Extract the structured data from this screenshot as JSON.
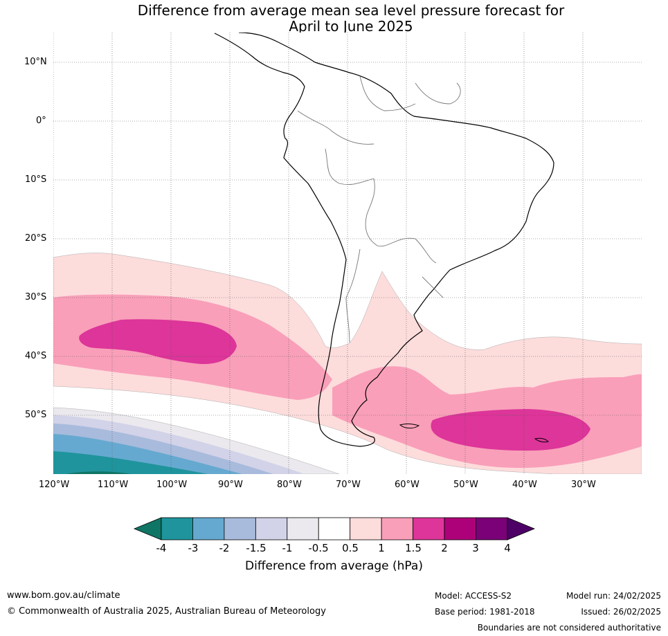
{
  "title_line1": "Difference from average mean sea level pressure forecast for",
  "title_line2": "April to June 2025",
  "lat_labels": [
    "10°N",
    "0°",
    "10°S",
    "20°S",
    "30°S",
    "40°S",
    "50°S"
  ],
  "lon_labels": [
    "120°W",
    "110°W",
    "100°W",
    "90°W",
    "80°W",
    "70°W",
    "60°W",
    "50°W",
    "40°W",
    "30°W"
  ],
  "colorbar": {
    "title": "Difference from average (hPa)",
    "ticks": [
      "-4",
      "-3",
      "-2",
      "-1.5",
      "-1",
      "-0.5",
      "0.5",
      "1",
      "1.5",
      "2",
      "3",
      "4"
    ],
    "colors": [
      "#0f7565",
      "#1f949c",
      "#66a9d0",
      "#a8bbdc",
      "#d2d2e8",
      "#ebe9ee",
      "#ffffff",
      "#fddcdc",
      "#f99fb9",
      "#dd3599",
      "#ad0179",
      "#7a0177",
      "#4d0066"
    ]
  },
  "footer": {
    "website": "www.bom.gov.au/climate",
    "copyright": "© Commonwealth of Australia 2025, Australian Bureau of Meteorology",
    "model": "Model: ACCESS-S2",
    "base_period": "Base period: 1981-2018",
    "model_run": "Model run: 24/02/2025",
    "issued": "Issued: 26/02/2025",
    "disclaimer": "Boundaries are not considered authoritative"
  }
}
